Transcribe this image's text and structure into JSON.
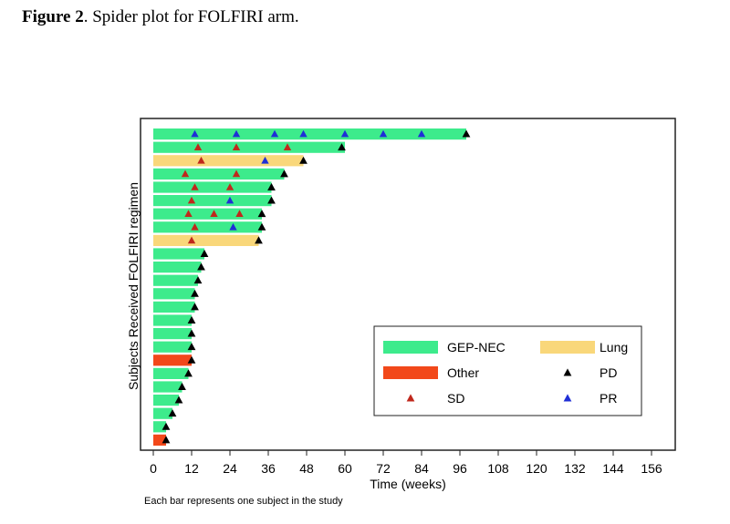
{
  "figure": {
    "label": "Figure 2",
    "caption": ". Spider plot for FOLFIRI arm."
  },
  "footnote": "Each bar represents one subject in the study",
  "colors": {
    "GEP-NEC": "#3deb8c",
    "Lung": "#f9d77a",
    "Other": "#f2481a",
    "SD": "#c0281c",
    "PR": "#1f2fd6",
    "PD": "#000000",
    "frame": "#222222"
  },
  "chart_data": {
    "type": "bar",
    "orientation": "horizontal",
    "xlabel": "Time (weeks)",
    "ylabel": "Subjects Received FOLFIRI regimen",
    "xlim": [
      0,
      160
    ],
    "xticks": [
      0,
      12,
      24,
      36,
      48,
      60,
      72,
      84,
      96,
      108,
      120,
      132,
      144,
      156
    ],
    "grid": false,
    "legend_position": "lower-right",
    "legend": [
      {
        "label": "GEP-NEC",
        "kind": "bar",
        "color_key": "GEP-NEC"
      },
      {
        "label": "Lung",
        "kind": "bar",
        "color_key": "Lung"
      },
      {
        "label": "Other",
        "kind": "bar",
        "color_key": "Other"
      },
      {
        "label": "PD",
        "kind": "marker",
        "color_key": "PD"
      },
      {
        "label": "SD",
        "kind": "marker",
        "color_key": "SD"
      },
      {
        "label": "PR",
        "kind": "marker",
        "color_key": "PR"
      }
    ],
    "subjects": [
      {
        "type": "GEP-NEC",
        "duration": 98,
        "SD": [],
        "PR": [
          13,
          26,
          38,
          47,
          60,
          72,
          84
        ],
        "PD": 98
      },
      {
        "type": "GEP-NEC",
        "duration": 60,
        "SD": [
          14,
          26,
          42
        ],
        "PR": [],
        "PD": 59
      },
      {
        "type": "Lung",
        "duration": 47,
        "SD": [
          15
        ],
        "PR": [
          35
        ],
        "PD": 47
      },
      {
        "type": "GEP-NEC",
        "duration": 41,
        "SD": [
          10,
          26
        ],
        "PR": [],
        "PD": 41
      },
      {
        "type": "GEP-NEC",
        "duration": 37,
        "SD": [
          13,
          24
        ],
        "PR": [],
        "PD": 37
      },
      {
        "type": "GEP-NEC",
        "duration": 37,
        "SD": [
          12
        ],
        "PR": [
          24
        ],
        "PD": 37
      },
      {
        "type": "GEP-NEC",
        "duration": 34,
        "SD": [
          11,
          19,
          27
        ],
        "PR": [],
        "PD": 34
      },
      {
        "type": "GEP-NEC",
        "duration": 34,
        "SD": [
          13
        ],
        "PR": [
          25
        ],
        "PD": 34
      },
      {
        "type": "Lung",
        "duration": 33,
        "SD": [
          12
        ],
        "PR": [],
        "PD": 33
      },
      {
        "type": "GEP-NEC",
        "duration": 16,
        "SD": [],
        "PR": [],
        "PD": 16
      },
      {
        "type": "GEP-NEC",
        "duration": 15,
        "SD": [],
        "PR": [],
        "PD": 15
      },
      {
        "type": "GEP-NEC",
        "duration": 14,
        "SD": [],
        "PR": [],
        "PD": 14
      },
      {
        "type": "GEP-NEC",
        "duration": 13,
        "SD": [],
        "PR": [],
        "PD": 13
      },
      {
        "type": "GEP-NEC",
        "duration": 13,
        "SD": [],
        "PR": [],
        "PD": 13
      },
      {
        "type": "GEP-NEC",
        "duration": 12,
        "SD": [],
        "PR": [],
        "PD": 12
      },
      {
        "type": "GEP-NEC",
        "duration": 12,
        "SD": [],
        "PR": [],
        "PD": 12
      },
      {
        "type": "GEP-NEC",
        "duration": 12,
        "SD": [],
        "PR": [],
        "PD": 12
      },
      {
        "type": "Other",
        "duration": 12,
        "SD": [],
        "PR": [],
        "PD": 12
      },
      {
        "type": "GEP-NEC",
        "duration": 11,
        "SD": [],
        "PR": [],
        "PD": 11
      },
      {
        "type": "GEP-NEC",
        "duration": 9,
        "SD": [],
        "PR": [],
        "PD": 9
      },
      {
        "type": "GEP-NEC",
        "duration": 8,
        "SD": [],
        "PR": [],
        "PD": 8
      },
      {
        "type": "GEP-NEC",
        "duration": 6,
        "SD": [],
        "PR": [],
        "PD": 6
      },
      {
        "type": "GEP-NEC",
        "duration": 4,
        "SD": [],
        "PR": [],
        "PD": 4
      },
      {
        "type": "Other",
        "duration": 4,
        "SD": [],
        "PR": [],
        "PD": 4
      }
    ]
  }
}
